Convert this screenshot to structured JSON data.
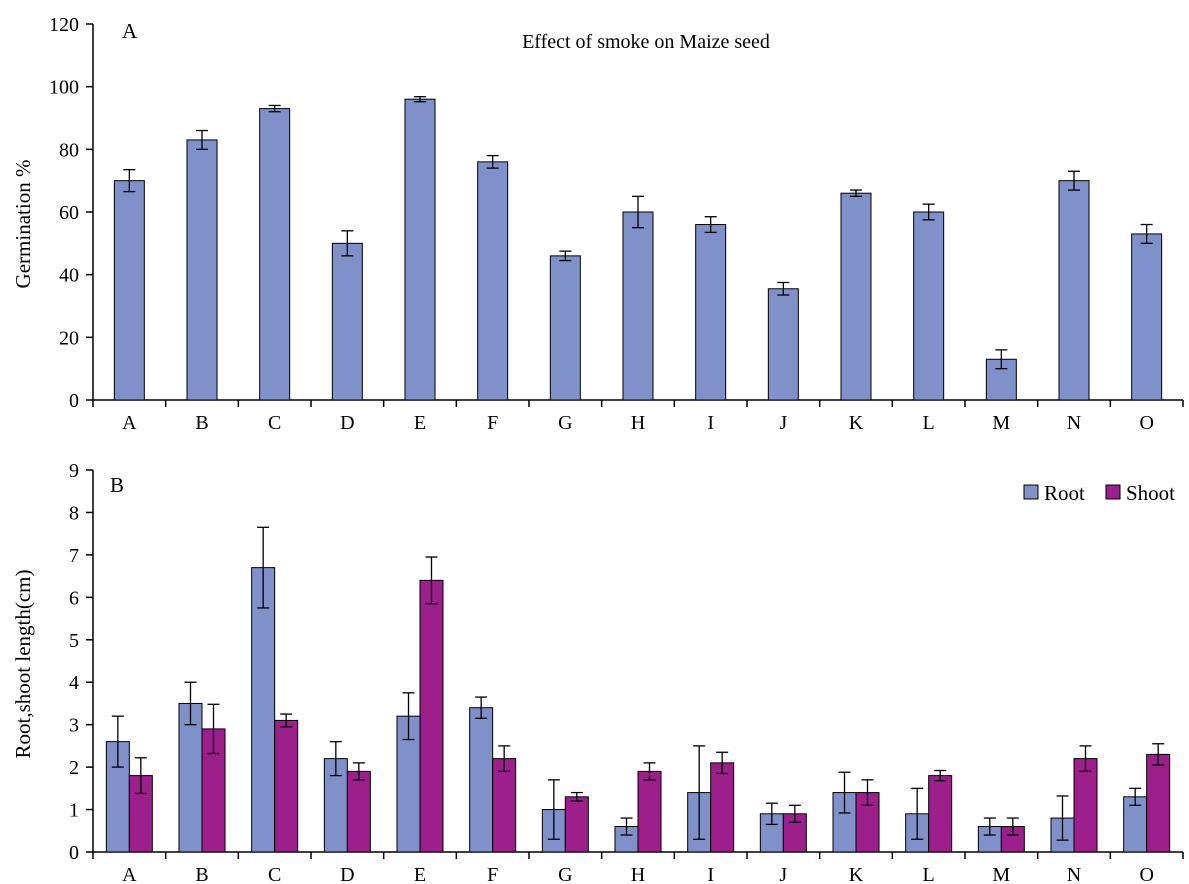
{
  "chart_data": [
    {
      "type": "bar",
      "panel_label": "A",
      "title": "Effect of smoke on Maize seed",
      "xlabel": "",
      "ylabel": "Germination %",
      "ylim": [
        0,
        120
      ],
      "yticks": [
        0,
        20,
        40,
        60,
        80,
        100,
        120
      ],
      "grid": false,
      "categories": [
        "A",
        "B",
        "C",
        "D",
        "E",
        "F",
        "G",
        "H",
        "I",
        "J",
        "K",
        "L",
        "M",
        "N",
        "O"
      ],
      "series": [
        {
          "color": "#8090C8",
          "values": [
            70,
            83,
            93,
            50,
            96,
            76,
            46,
            60,
            56,
            35.5,
            66,
            60,
            13,
            70,
            53
          ],
          "errors": [
            3.5,
            3,
            1,
            4,
            0.8,
            2,
            1.5,
            5,
            2.5,
            2,
            1,
            2.5,
            3,
            3,
            3
          ]
        }
      ]
    },
    {
      "type": "bar",
      "panel_label": "B",
      "title": "",
      "xlabel": "",
      "ylabel": "Root,shoot length(cm)",
      "ylim": [
        0,
        9
      ],
      "yticks": [
        0,
        1,
        2,
        3,
        4,
        5,
        6,
        7,
        8,
        9
      ],
      "grid": false,
      "legend": "top-right",
      "categories": [
        "A",
        "B",
        "C",
        "D",
        "E",
        "F",
        "G",
        "H",
        "I",
        "J",
        "K",
        "L",
        "M",
        "N",
        "O"
      ],
      "series": [
        {
          "name": "Root",
          "color": "#8090C8",
          "values": [
            2.6,
            3.5,
            6.7,
            2.2,
            3.2,
            3.4,
            1.0,
            0.6,
            1.4,
            0.9,
            1.4,
            0.9,
            0.6,
            0.8,
            1.3
          ],
          "errors": [
            0.6,
            0.5,
            0.95,
            0.4,
            0.55,
            0.25,
            0.7,
            0.2,
            1.1,
            0.25,
            0.48,
            0.6,
            0.2,
            0.52,
            0.2
          ]
        },
        {
          "name": "Shoot",
          "color": "#9C1F8C",
          "values": [
            1.8,
            2.9,
            3.1,
            1.9,
            6.4,
            2.2,
            1.3,
            1.9,
            2.1,
            0.9,
            1.4,
            1.8,
            0.6,
            2.2,
            2.3
          ],
          "errors": [
            0.42,
            0.58,
            0.15,
            0.2,
            0.55,
            0.3,
            0.1,
            0.2,
            0.25,
            0.2,
            0.3,
            0.12,
            0.2,
            0.3,
            0.25
          ]
        }
      ]
    }
  ]
}
